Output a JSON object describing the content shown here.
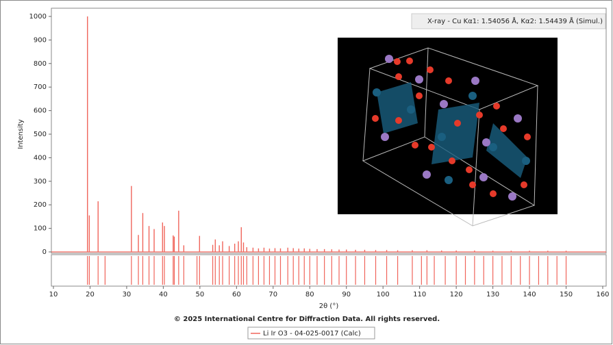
{
  "chart_data": {
    "type": "stick",
    "subtitle": "X-ray - Cu Kα1: 1.54056 Å, Kα2: 1.54439 Å (Simul.)",
    "xlabel": "2θ (°)",
    "ylabel": "Intensity",
    "footer": "© 2025 International Centre for Diffraction Data. All rights reserved.",
    "xlim": [
      10,
      160
    ],
    "ylim": [
      0,
      1000
    ],
    "xticks": [
      10,
      20,
      30,
      40,
      50,
      60,
      70,
      80,
      90,
      100,
      110,
      120,
      130,
      140,
      150,
      160
    ],
    "yticks": [
      0,
      100,
      200,
      300,
      400,
      500,
      600,
      700,
      800,
      900,
      1000
    ],
    "series": [
      {
        "name": "Li Ir O3 - 04-025-0017 (Calc)",
        "color": "#f0645a",
        "x": [
          19.3,
          19.8,
          22.2,
          31.3,
          33.2,
          34.4,
          36.1,
          37.5,
          39.8,
          40.3,
          42.7,
          43.0,
          44.2,
          45.6,
          49.9,
          53.5,
          54.2,
          55.3,
          56.2,
          58.0,
          59.5,
          60.5,
          61.3,
          61.9,
          62.8,
          64.5,
          66.0,
          67.5,
          69.0,
          70.5,
          72.0,
          74.0,
          75.5,
          77.0,
          78.5,
          80.0,
          82.0,
          84.0,
          86.0,
          88.0,
          90.0,
          92.5,
          95.0,
          98.0,
          101.0,
          104.0,
          108.0,
          112.0,
          116.0,
          120.0,
          125.0,
          130.0,
          135.0,
          140.0,
          145.0,
          150.0
        ],
        "values": [
          1000,
          155,
          215,
          280,
          72,
          165,
          110,
          97,
          125,
          110,
          70,
          65,
          175,
          28,
          68,
          30,
          53,
          28,
          45,
          25,
          35,
          45,
          105,
          40,
          20,
          18,
          15,
          18,
          14,
          16,
          15,
          18,
          16,
          14,
          15,
          13,
          12,
          12,
          11,
          10,
          10,
          9,
          9,
          8,
          8,
          7,
          7,
          7,
          6,
          6,
          6,
          5,
          5,
          5,
          5,
          5
        ],
        "reflections": [
          19.3,
          19.8,
          22.2,
          24.1,
          31.3,
          33.2,
          34.4,
          36.1,
          37.5,
          39.8,
          40.3,
          42.7,
          43.0,
          44.2,
          45.6,
          49.2,
          49.9,
          53.5,
          54.2,
          55.3,
          56.2,
          58.0,
          59.5,
          60.5,
          61.3,
          61.9,
          62.8,
          64.5,
          66.0,
          67.5,
          69.0,
          70.5,
          72.0,
          74.0,
          75.5,
          77.0,
          78.5,
          80.0,
          82.0,
          84.0,
          86.0,
          88.0,
          90.0,
          92.5,
          95.0,
          98.0,
          101.0,
          104.0,
          108.0,
          110.5,
          112.0,
          114.0,
          117.0,
          120.0,
          122.5,
          125.0,
          127.5,
          130.0,
          132.5,
          135.0,
          137.5,
          140.0,
          142.5,
          145.0,
          147.5,
          150.0
        ]
      }
    ]
  }
}
